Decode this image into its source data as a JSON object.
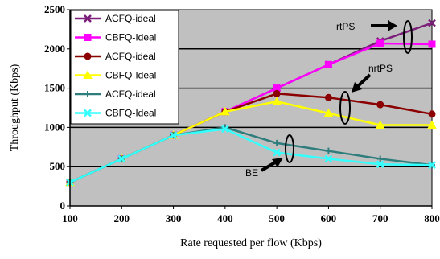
{
  "chart_data": {
    "type": "line",
    "title": "",
    "xlabel": "Rate requested per flow (Kbps)",
    "ylabel": "Throughput (Kbps)",
    "x": [
      100,
      200,
      300,
      400,
      500,
      600,
      700,
      800
    ],
    "xlim": [
      100,
      800
    ],
    "ylim": [
      0,
      2500
    ],
    "yticks": [
      0,
      500,
      1000,
      1500,
      2000,
      2500
    ],
    "grid": "horizontal",
    "legend_position": "top-left",
    "series": [
      {
        "name": "ACFQ-ideal",
        "color": "#7B1F7B",
        "marker": "x",
        "values": [
          300,
          600,
          900,
          1200,
          1500,
          1800,
          2100,
          2330
        ]
      },
      {
        "name": "CBFQ-Ideal",
        "color": "#FF00FF",
        "marker": "square",
        "values": [
          300,
          600,
          900,
          1200,
          1500,
          1800,
          2070,
          2060
        ]
      },
      {
        "name": "ACFQ-ideal",
        "color": "#8B0000",
        "marker": "circle",
        "values": [
          300,
          600,
          900,
          1200,
          1430,
          1380,
          1290,
          1170
        ]
      },
      {
        "name": "CBFQ-Ideal",
        "color": "#FFFF00",
        "marker": "triangle",
        "values": [
          300,
          600,
          900,
          1200,
          1330,
          1180,
          1030,
          1030
        ]
      },
      {
        "name": "ACFQ-ideal",
        "color": "#2E7D7D",
        "marker": "plus",
        "values": [
          300,
          600,
          900,
          1000,
          800,
          700,
          600,
          520
        ]
      },
      {
        "name": "CBFQ-Ideal",
        "color": "#33FFFF",
        "marker": "x",
        "values": [
          300,
          600,
          900,
          980,
          680,
          600,
          530,
          520
        ]
      }
    ],
    "annotations": [
      "rtPS",
      "nrtPS",
      "BE"
    ]
  }
}
